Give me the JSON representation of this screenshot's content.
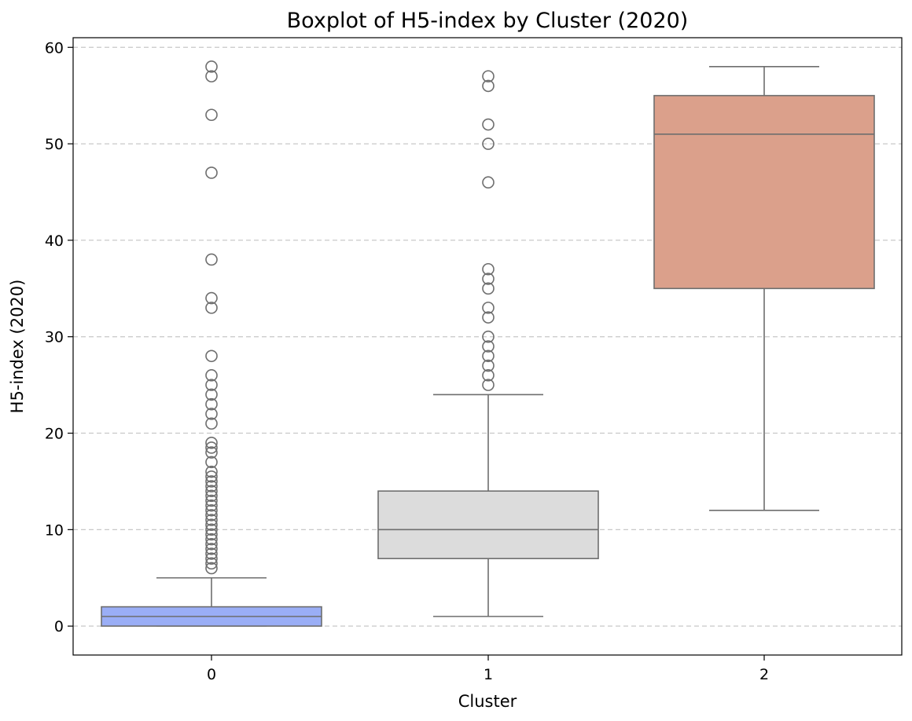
{
  "chart_data": {
    "type": "boxplot",
    "title": "Boxplot of H5-index by Cluster (2020)",
    "xlabel": "Cluster",
    "ylabel": "H5-index (2020)",
    "ylim": [
      -3,
      61
    ],
    "y_ticks": [
      0,
      10,
      20,
      30,
      40,
      50,
      60
    ],
    "grid": "horizontal dashed",
    "categories": [
      "0",
      "1",
      "2"
    ],
    "boxes": [
      {
        "category": "0",
        "color": "#9aaef6",
        "whisker_low": 0,
        "q1": 0,
        "median": 1,
        "q3": 2,
        "whisker_high": 5,
        "outliers": [
          6,
          6.5,
          7,
          7.5,
          8,
          8.5,
          9,
          9.5,
          10,
          10.5,
          11,
          11.5,
          12,
          12.5,
          13,
          13.5,
          14,
          14.5,
          15,
          15.5,
          16,
          17,
          18,
          18.5,
          19,
          21,
          22,
          23,
          24,
          25,
          26,
          28,
          33,
          34,
          38,
          47,
          53,
          57,
          58
        ]
      },
      {
        "category": "1",
        "color": "#dcdcdc",
        "whisker_low": 1,
        "q1": 7,
        "median": 10,
        "q3": 14,
        "whisker_high": 24,
        "outliers": [
          25,
          26,
          27,
          28,
          29,
          30,
          32,
          33,
          35,
          36,
          37,
          46,
          50,
          52,
          56,
          57
        ]
      },
      {
        "category": "2",
        "color": "#dba08b",
        "whisker_low": 12,
        "q1": 35,
        "median": 51,
        "q3": 55,
        "whisker_high": 58,
        "outliers": []
      }
    ]
  }
}
